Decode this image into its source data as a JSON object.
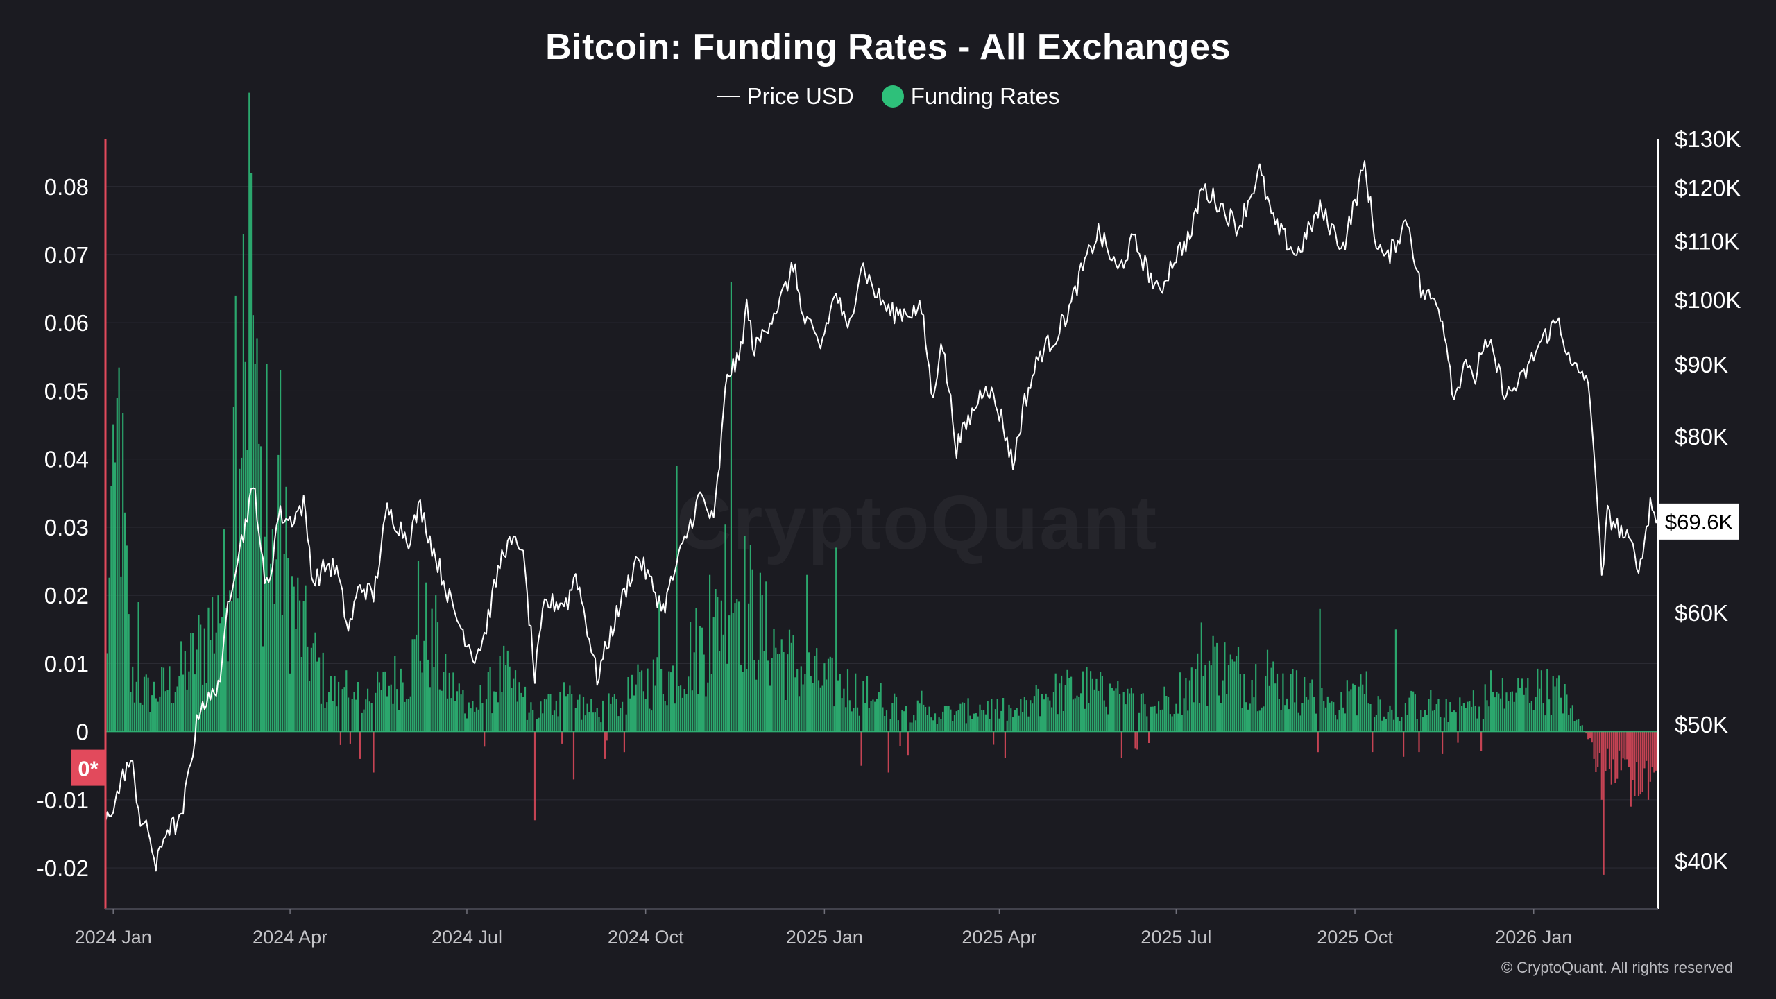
{
  "title": "Bitcoin: Funding Rates - All Exchanges",
  "legend": {
    "price_label": "Price USD",
    "funding_label": "Funding Rates"
  },
  "watermark": "CryptoQuant",
  "copyright": "© CryptoQuant. All rights reserved",
  "colors": {
    "background": "#1b1b21",
    "positive": "#2ec07a",
    "negative": "#e24a5c",
    "price_line": "#ffffff",
    "left_axis": "#e24a5c",
    "right_axis": "#ffffff"
  },
  "chart_data": {
    "type": "bar+line",
    "x_range": [
      "2023-12-28",
      "2026-03-06"
    ],
    "x_ticks": [
      {
        "label": "2024 Jan",
        "date": "2024-01-01"
      },
      {
        "label": "2024 Apr",
        "date": "2024-04-01"
      },
      {
        "label": "2024 Jul",
        "date": "2024-07-01"
      },
      {
        "label": "2024 Oct",
        "date": "2024-10-01"
      },
      {
        "label": "2025 Jan",
        "date": "2025-01-01"
      },
      {
        "label": "2025 Apr",
        "date": "2025-04-01"
      },
      {
        "label": "2025 Jul",
        "date": "2025-07-01"
      },
      {
        "label": "2025 Oct",
        "date": "2025-10-01"
      },
      {
        "label": "2026 Jan",
        "date": "2026-01-01"
      }
    ],
    "left_axis": {
      "range": [
        -0.026,
        0.087
      ],
      "ticks": [
        {
          "value": 0.08,
          "label": "0.08"
        },
        {
          "value": 0.07,
          "label": "0.07"
        },
        {
          "value": 0.06,
          "label": "0.06"
        },
        {
          "value": 0.05,
          "label": "0.05"
        },
        {
          "value": 0.04,
          "label": "0.04"
        },
        {
          "value": 0.03,
          "label": "0.03"
        },
        {
          "value": 0.02,
          "label": "0.02"
        },
        {
          "value": 0.01,
          "label": "0.01"
        },
        {
          "value": 0,
          "label": "0"
        },
        {
          "value": -0.01,
          "label": "-0.01"
        },
        {
          "value": -0.02,
          "label": "-0.02"
        }
      ],
      "zero_marker": "0*"
    },
    "right_axis": {
      "scale": "log",
      "range": [
        37000,
        130000
      ],
      "ticks": [
        {
          "value": 130000,
          "label": "$130K"
        },
        {
          "value": 120000,
          "label": "$120K"
        },
        {
          "value": 110000,
          "label": "$110K"
        },
        {
          "value": 100000,
          "label": "$100K"
        },
        {
          "value": 90000,
          "label": "$90K"
        },
        {
          "value": 80000,
          "label": "$80K"
        },
        {
          "value": 60000,
          "label": "$60K"
        },
        {
          "value": 50000,
          "label": "$50K"
        },
        {
          "value": 40000,
          "label": "$40K"
        }
      ],
      "current_label": "$69.6K",
      "current_value": 69600
    },
    "grid": true,
    "legend_position": "top-center",
    "funding_keypoints": [
      [
        "2023-12-28",
        0.012
      ],
      [
        "2024-01-02",
        0.036
      ],
      [
        "2024-01-04",
        0.049
      ],
      [
        "2024-01-10",
        0.008
      ],
      [
        "2024-01-20",
        0.006
      ],
      [
        "2024-02-01",
        0.008
      ],
      [
        "2024-02-10",
        0.011
      ],
      [
        "2024-02-20",
        0.017
      ],
      [
        "2024-02-28",
        0.022
      ],
      [
        "2024-03-05",
        0.055
      ],
      [
        "2024-03-10",
        0.07
      ],
      [
        "2024-03-12",
        0.082
      ],
      [
        "2024-03-15",
        0.045
      ],
      [
        "2024-03-20",
        0.026
      ],
      [
        "2024-03-28",
        0.03
      ],
      [
        "2024-04-03",
        0.02
      ],
      [
        "2024-04-10",
        0.014
      ],
      [
        "2024-04-20",
        0.007
      ],
      [
        "2024-05-01",
        0.005
      ],
      [
        "2024-05-15",
        0.006
      ],
      [
        "2024-06-01",
        0.01
      ],
      [
        "2024-06-10",
        0.016
      ],
      [
        "2024-06-20",
        0.008
      ],
      [
        "2024-07-05",
        0.004
      ],
      [
        "2024-07-20",
        0.009
      ],
      [
        "2024-08-05",
        0.003
      ],
      [
        "2024-08-20",
        0.006
      ],
      [
        "2024-09-05",
        0.003
      ],
      [
        "2024-09-20",
        0.005
      ],
      [
        "2024-10-01",
        0.008
      ],
      [
        "2024-10-15",
        0.009
      ],
      [
        "2024-10-25",
        0.013
      ],
      [
        "2024-11-05",
        0.015
      ],
      [
        "2024-11-12",
        0.027
      ],
      [
        "2024-11-20",
        0.022
      ],
      [
        "2024-12-01",
        0.016
      ],
      [
        "2024-12-15",
        0.011
      ],
      [
        "2025-01-01",
        0.008
      ],
      [
        "2025-01-15",
        0.007
      ],
      [
        "2025-02-01",
        0.005
      ],
      [
        "2025-02-20",
        0.003
      ],
      [
        "2025-03-10",
        0.003
      ],
      [
        "2025-03-25",
        0.004
      ],
      [
        "2025-04-10",
        0.003
      ],
      [
        "2025-04-25",
        0.006
      ],
      [
        "2025-05-15",
        0.007
      ],
      [
        "2025-06-05",
        0.005
      ],
      [
        "2025-06-20",
        0.004
      ],
      [
        "2025-07-10",
        0.008
      ],
      [
        "2025-07-20",
        0.011
      ],
      [
        "2025-08-05",
        0.009
      ],
      [
        "2025-08-20",
        0.008
      ],
      [
        "2025-09-05",
        0.006
      ],
      [
        "2025-09-20",
        0.004
      ],
      [
        "2025-10-05",
        0.007
      ],
      [
        "2025-10-20",
        0.003
      ],
      [
        "2025-11-05",
        0.005
      ],
      [
        "2025-11-20",
        0.003
      ],
      [
        "2025-12-05",
        0.005
      ],
      [
        "2025-12-20",
        0.006
      ],
      [
        "2026-01-05",
        0.007
      ],
      [
        "2026-01-15",
        0.006
      ],
      [
        "2026-01-25",
        0.002
      ],
      [
        "2026-02-01",
        -0.004
      ],
      [
        "2026-02-10",
        -0.006
      ],
      [
        "2026-02-20",
        -0.007
      ],
      [
        "2026-03-06",
        -0.006
      ]
    ],
    "funding_spikes": [
      [
        "2023-12-31",
        0.036
      ],
      [
        "2024-01-03",
        0.049
      ],
      [
        "2024-01-14",
        0.019
      ],
      [
        "2024-02-24",
        0.02
      ],
      [
        "2024-03-04",
        0.064
      ],
      [
        "2024-03-08",
        0.073
      ],
      [
        "2024-03-12",
        0.082
      ],
      [
        "2024-03-20",
        0.054
      ],
      [
        "2024-03-27",
        0.053
      ],
      [
        "2024-04-30",
        0.009
      ],
      [
        "2024-05-07",
        -0.004
      ],
      [
        "2024-05-14",
        -0.006
      ],
      [
        "2024-06-06",
        0.025
      ],
      [
        "2024-06-15",
        0.02
      ],
      [
        "2024-08-05",
        -0.013
      ],
      [
        "2024-08-25",
        -0.007
      ],
      [
        "2024-09-10",
        -0.004
      ],
      [
        "2024-10-08",
        0.02
      ],
      [
        "2024-10-17",
        0.039
      ],
      [
        "2024-11-03",
        0.023
      ],
      [
        "2024-11-14",
        0.066
      ],
      [
        "2024-12-23",
        0.023
      ],
      [
        "2025-01-07",
        0.027
      ],
      [
        "2025-01-20",
        -0.005
      ],
      [
        "2025-02-03",
        -0.006
      ],
      [
        "2025-02-20",
        0.006
      ],
      [
        "2025-03-10",
        0.003
      ],
      [
        "2025-07-14",
        0.016
      ],
      [
        "2025-07-22",
        0.013
      ],
      [
        "2025-08-17",
        0.012
      ],
      [
        "2025-09-01",
        0.009
      ],
      [
        "2025-09-13",
        0.018
      ],
      [
        "2025-10-10",
        -0.003
      ],
      [
        "2025-10-22",
        0.015
      ],
      [
        "2025-11-03",
        -0.003
      ],
      [
        "2025-12-10",
        0.009
      ],
      [
        "2026-01-05",
        0.009
      ],
      [
        "2026-02-05",
        -0.01
      ],
      [
        "2026-02-06",
        -0.021
      ],
      [
        "2026-02-20",
        -0.011
      ],
      [
        "2026-03-01",
        -0.01
      ],
      [
        "2026-03-04",
        -0.006
      ]
    ],
    "price_keypoints": [
      [
        "2023-12-28",
        42600
      ],
      [
        "2024-01-03",
        44500
      ],
      [
        "2024-01-08",
        46800
      ],
      [
        "2024-01-11",
        46500
      ],
      [
        "2024-01-15",
        42800
      ],
      [
        "2024-01-20",
        41600
      ],
      [
        "2024-01-23",
        39500
      ],
      [
        "2024-01-28",
        42100
      ],
      [
        "2024-02-05",
        42600
      ],
      [
        "2024-02-10",
        47200
      ],
      [
        "2024-02-15",
        51800
      ],
      [
        "2024-02-20",
        52000
      ],
      [
        "2024-02-26",
        54500
      ],
      [
        "2024-02-29",
        61000
      ],
      [
        "2024-03-05",
        66000
      ],
      [
        "2024-03-08",
        68200
      ],
      [
        "2024-03-11",
        72000
      ],
      [
        "2024-03-14",
        73100
      ],
      [
        "2024-03-19",
        62500
      ],
      [
        "2024-03-22",
        64000
      ],
      [
        "2024-03-26",
        70500
      ],
      [
        "2024-04-01",
        69700
      ],
      [
        "2024-04-08",
        71600
      ],
      [
        "2024-04-13",
        63000
      ],
      [
        "2024-04-20",
        64900
      ],
      [
        "2024-04-25",
        64300
      ],
      [
        "2024-05-01",
        58200
      ],
      [
        "2024-05-07",
        62800
      ],
      [
        "2024-05-14",
        61600
      ],
      [
        "2024-05-21",
        70900
      ],
      [
        "2024-06-01",
        67700
      ],
      [
        "2024-06-07",
        71400
      ],
      [
        "2024-06-13",
        66900
      ],
      [
        "2024-06-24",
        60200
      ],
      [
        "2024-07-05",
        55800
      ],
      [
        "2024-07-10",
        57800
      ],
      [
        "2024-07-20",
        66700
      ],
      [
        "2024-07-29",
        67300
      ],
      [
        "2024-08-05",
        53900
      ],
      [
        "2024-08-10",
        60800
      ],
      [
        "2024-08-22",
        61100
      ],
      [
        "2024-08-26",
        64100
      ],
      [
        "2024-09-06",
        53900
      ],
      [
        "2024-09-15",
        59200
      ],
      [
        "2024-09-27",
        65800
      ],
      [
        "2024-10-10",
        60300
      ],
      [
        "2024-10-21",
        67400
      ],
      [
        "2024-10-29",
        72700
      ],
      [
        "2024-11-05",
        69400
      ],
      [
        "2024-11-08",
        76500
      ],
      [
        "2024-11-12",
        88700
      ],
      [
        "2024-11-18",
        90400
      ],
      [
        "2024-11-22",
        98900
      ],
      [
        "2024-11-26",
        91900
      ],
      [
        "2024-12-05",
        97500
      ],
      [
        "2024-12-09",
        99500
      ],
      [
        "2024-12-17",
        106100
      ],
      [
        "2024-12-20",
        97600
      ],
      [
        "2024-12-30",
        92600
      ],
      [
        "2025-01-07",
        101300
      ],
      [
        "2025-01-13",
        94500
      ],
      [
        "2025-01-20",
        106100
      ],
      [
        "2025-01-27",
        101200
      ],
      [
        "2025-02-04",
        97800
      ],
      [
        "2025-02-20",
        98300
      ],
      [
        "2025-02-26",
        84300
      ],
      [
        "2025-03-02",
        94200
      ],
      [
        "2025-03-10",
        78600
      ],
      [
        "2025-03-20",
        84200
      ],
      [
        "2025-03-25",
        87500
      ],
      [
        "2025-04-02",
        82500
      ],
      [
        "2025-04-08",
        76300
      ],
      [
        "2025-04-14",
        84600
      ],
      [
        "2025-04-22",
        91600
      ],
      [
        "2025-04-30",
        94200
      ],
      [
        "2025-05-08",
        99100
      ],
      [
        "2025-05-12",
        103500
      ],
      [
        "2025-05-22",
        111700
      ],
      [
        "2025-06-01",
        104600
      ],
      [
        "2025-06-09",
        110200
      ],
      [
        "2025-06-22",
        100800
      ],
      [
        "2025-06-30",
        107100
      ],
      [
        "2025-07-09",
        111300
      ],
      [
        "2025-07-14",
        120000
      ],
      [
        "2025-07-22",
        117400
      ],
      [
        "2025-08-02",
        112500
      ],
      [
        "2025-08-13",
        123300
      ],
      [
        "2025-08-20",
        113400
      ],
      [
        "2025-09-01",
        107500
      ],
      [
        "2025-09-13",
        115900
      ],
      [
        "2025-09-25",
        108900
      ],
      [
        "2025-10-02",
        118600
      ],
      [
        "2025-10-06",
        124600
      ],
      [
        "2025-10-11",
        111000
      ],
      [
        "2025-10-17",
        106400
      ],
      [
        "2025-10-28",
        114100
      ],
      [
        "2025-11-04",
        101200
      ],
      [
        "2025-11-13",
        99500
      ],
      [
        "2025-11-18",
        92000
      ],
      [
        "2025-11-21",
        84700
      ],
      [
        "2025-11-27",
        91300
      ],
      [
        "2025-12-01",
        86600
      ],
      [
        "2025-12-05",
        92400
      ],
      [
        "2025-12-10",
        92100
      ],
      [
        "2025-12-18",
        85400
      ],
      [
        "2025-12-26",
        87700
      ],
      [
        "2026-01-05",
        93500
      ],
      [
        "2026-01-14",
        96800
      ],
      [
        "2026-01-20",
        89500
      ],
      [
        "2026-01-28",
        88400
      ],
      [
        "2026-02-01",
        79000
      ],
      [
        "2026-02-05",
        63000
      ],
      [
        "2026-02-08",
        70400
      ],
      [
        "2026-02-14",
        68800
      ],
      [
        "2026-02-20",
        66900
      ],
      [
        "2026-02-25",
        64600
      ],
      [
        "2026-03-02",
        71800
      ],
      [
        "2026-03-06",
        69600
      ]
    ]
  }
}
